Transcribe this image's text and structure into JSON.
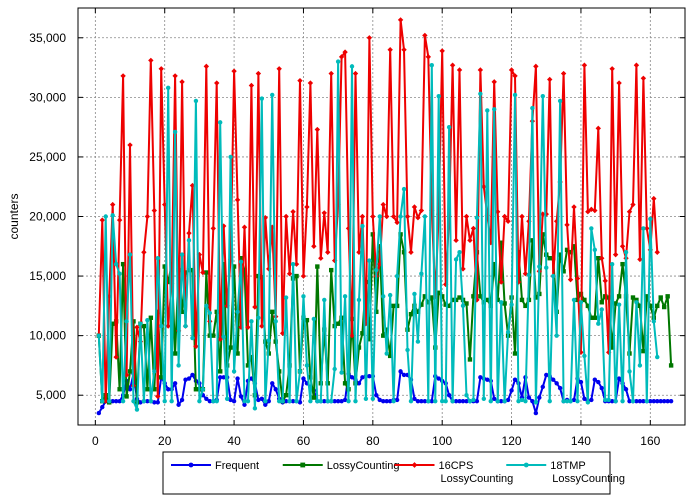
{
  "chart_data": {
    "type": "line",
    "title": "",
    "xlabel": "",
    "ylabel": "counters",
    "xlim": [
      -5,
      170
    ],
    "ylim": [
      2500,
      37500
    ],
    "xticks": [
      0,
      20,
      40,
      60,
      80,
      100,
      120,
      140,
      160
    ],
    "yticks": [
      5000,
      10000,
      15000,
      20000,
      25000,
      30000,
      35000
    ],
    "xtick_labels": [
      "0",
      "20",
      "40",
      "60",
      "80",
      "100",
      "120",
      "140",
      "160"
    ],
    "ytick_labels": [
      "5,000",
      "10,000",
      "15,000",
      "20,000",
      "25,000",
      "30,000",
      "35,000"
    ],
    "grid": true,
    "legend_position": "bottom",
    "series": [
      {
        "name": "Frequent",
        "color": "#0000ee",
        "marker": "circle",
        "x_start": 1,
        "values": [
          3500,
          4000,
          4500,
          4400,
          4500,
          4500,
          4500,
          5000,
          6200,
          5500,
          6800,
          4700,
          4400,
          4500,
          4500,
          4500,
          4400,
          4400,
          6500,
          6000,
          5500,
          5500,
          6000,
          4200,
          4600,
          6300,
          6400,
          6700,
          6200,
          6000,
          5000,
          4700,
          4500,
          4500,
          4600,
          6500,
          6500,
          6500,
          4600,
          4500,
          6400,
          4900,
          4200,
          6200,
          6400,
          6000,
          4600,
          4700,
          4200,
          4500,
          6000,
          5500,
          4700,
          4400,
          4500,
          4500,
          4500,
          4500,
          4400,
          6400,
          6000,
          5700,
          5400,
          4500,
          4500,
          4500,
          4500,
          4500,
          4500,
          4500,
          4500,
          4600,
          6800,
          6500,
          6300,
          6000,
          6500,
          6600,
          6600,
          6600,
          5000,
          4600,
          4500,
          4500,
          4500,
          4600,
          4600,
          7000,
          6700,
          6700,
          6300,
          4700,
          4500,
          4500,
          4500,
          4500,
          4500,
          6600,
          6400,
          6200,
          6000,
          5000,
          4500,
          4500,
          4500,
          4500,
          4500,
          4500,
          4500,
          4500,
          6500,
          6400,
          6300,
          6200,
          4700,
          4500,
          4500,
          4500,
          4600,
          5400,
          6300,
          6000,
          4800,
          6500,
          4800,
          4500,
          3500,
          4800,
          5700,
          6700,
          6600,
          6300,
          6000,
          5600,
          4500,
          4600,
          4500,
          4600,
          6400,
          6100,
          4700,
          4500,
          4600,
          6300,
          6100,
          5600,
          4500,
          4500,
          4500,
          4500,
          6400,
          6000,
          5500,
          4500,
          4500,
          4500,
          4500,
          4500,
          4500,
          4500,
          4500,
          4500,
          4500,
          4500,
          4500,
          4500
        ]
      },
      {
        "name": "LossyCounting",
        "color": "#007700",
        "marker": "square",
        "x_start": 1,
        "values": [
          10000,
          4500,
          5000,
          4400,
          11000,
          11200,
          5500,
          16000,
          4900,
          7000,
          11200,
          4400,
          11000,
          10800,
          5500,
          11500,
          5500,
          12000,
          6500,
          15800,
          14500,
          16000,
          8500,
          15500,
          12000,
          15300,
          15500,
          15500,
          5500,
          5500,
          5500,
          15300,
          10000,
          10000,
          12000,
          7000,
          16000,
          7500,
          9000,
          15800,
          8500,
          16500,
          15500,
          7500,
          8200,
          5000,
          15000,
          14900,
          9500,
          8500,
          12000,
          9500,
          7000,
          4500,
          5000,
          7500,
          14800,
          15000,
          7000,
          11500,
          11300,
          6500,
          4800,
          15800,
          6000,
          10500,
          6000,
          15500,
          10800,
          11000,
          11500,
          6000,
          5500,
          11400,
          6000,
          9000,
          10200,
          14500,
          9700,
          18500,
          12000,
          17500,
          10000,
          10500,
          8300,
          12500,
          12500,
          18500,
          17000,
          10500,
          11800,
          12500,
          12000,
          12600,
          13300,
          12800,
          13200,
          9000,
          13600,
          13300,
          12600,
          12500,
          13000,
          13000,
          13200,
          13000,
          12700,
          8000,
          13300,
          17000,
          13300,
          12800,
          13000,
          12500,
          16000,
          13000,
          17800,
          12700,
          10000,
          13200,
          8500,
          17000,
          13000,
          12500,
          13000,
          18000,
          13200,
          13500,
          18500,
          16800,
          16500,
          16500,
          12000,
          16800,
          15400,
          17200,
          17000,
          17500,
          13000,
          13500,
          13000,
          12500,
          11500,
          11500,
          16500,
          12800,
          13300,
          13200,
          9000,
          12700,
          13300,
          16000,
          13300,
          8500,
          13200,
          13000,
          12500,
          8700,
          13300,
          12500,
          11500,
          12500,
          13200,
          12400,
          13300,
          7500
        ]
      },
      {
        "name": "16CPS LossyCounting",
        "color": "#ee0000",
        "marker": "diamond",
        "x_start": 1,
        "values": [
          10000,
          19700,
          4500,
          13300,
          21000,
          8200,
          19700,
          31800,
          6700,
          26000,
          5800,
          10700,
          9500,
          17000,
          20000,
          33100,
          20500,
          4900,
          32400,
          21000,
          10800,
          14400,
          31800,
          10400,
          31300,
          10800,
          18600,
          22600,
          9100,
          16800,
          15300,
          32600,
          11200,
          19000,
          31200,
          9700,
          19200,
          12500,
          16400,
          32200,
          21400,
          10700,
          19100,
          10700,
          31000,
          12400,
          32000,
          10800,
          19900,
          15600,
          19100,
          11600,
          32400,
          10200,
          20000,
          15200,
          20400,
          16000,
          31400,
          15000,
          20800,
          31200,
          17500,
          27300,
          16500,
          20300,
          17000,
          32000,
          16300,
          21000,
          33400,
          33800,
          19000,
          10000,
          32000,
          17000,
          20000,
          11000,
          35000,
          20000,
          15000,
          16000,
          21000,
          20000,
          34000,
          20000,
          19500,
          36500,
          34000,
          20000,
          17000,
          20800,
          19900,
          20500,
          35200,
          33400,
          20500,
          13300,
          20200,
          33900,
          14300,
          20000,
          32700,
          18000,
          32300,
          15600,
          20000,
          18000,
          19000,
          13000,
          32300,
          22500,
          20100,
          17800,
          31300,
          20400,
          14500,
          20000,
          19600,
          32300,
          31800,
          14500,
          20000,
          15200,
          19600,
          28000,
          32600,
          15400,
          20200,
          20200,
          31500,
          15000,
          19600,
          22900,
          32000,
          19300,
          14700,
          20800,
          14800,
          8600,
          32700,
          20400,
          20600,
          20500,
          27400,
          16500,
          14600,
          8600,
          32400,
          16800,
          31200,
          17500,
          16500,
          20400,
          21000,
          32700,
          16400,
          31600,
          19000,
          17200,
          21500,
          17000
        ]
      },
      {
        "name": "18TMP LossyCounting",
        "color": "#00bbbb",
        "marker": "circle",
        "x_start": 1,
        "values": [
          10000,
          4500,
          20000,
          4500,
          20100,
          16000,
          15200,
          4500,
          11200,
          16800,
          4500,
          3800,
          11000,
          4500,
          11300,
          4500,
          7000,
          16500,
          10800,
          4500,
          30800,
          4500,
          27100,
          7500,
          16800,
          10800,
          18000,
          9800,
          29700,
          4500,
          5500,
          12500,
          11900,
          4500,
          4500,
          27900,
          9900,
          4700,
          25000,
          7000,
          12000,
          16200,
          4500,
          4500,
          11200,
          3900,
          11500,
          29900,
          4500,
          9600,
          30200,
          11200,
          4500,
          4500,
          13200,
          4500,
          16000,
          4500,
          7000,
          13300,
          7500,
          4500,
          11400,
          4500,
          4500,
          13000,
          4500,
          4500,
          7200,
          33000,
          6900,
          13300,
          4500,
          32600,
          4500,
          13000,
          19200,
          4700,
          16300,
          4700,
          15500,
          20000,
          13300,
          8500,
          13400,
          4500,
          15000,
          20000,
          22300,
          8800,
          4500,
          13500,
          9500,
          15200,
          20000,
          4500,
          32700,
          4500,
          30100,
          4500,
          4500,
          27500,
          4500,
          16400,
          17000,
          12500,
          5000,
          4500,
          4600,
          19900,
          30300,
          4700,
          28900,
          4500,
          29000,
          4500,
          12800,
          4500,
          10300,
          12600,
          30200,
          4500,
          4600,
          4500,
          15100,
          29100,
          4400,
          15800,
          30100,
          15700,
          4500,
          15000,
          10000,
          29700,
          4500,
          4500,
          4500,
          13000,
          4500,
          12800,
          8300,
          4400,
          19000,
          17200,
          11000,
          12200,
          4600,
          4600,
          16000,
          4500,
          12600,
          4500,
          17000,
          7000,
          4500,
          12800,
          7500,
          19000,
          4500,
          19800,
          11200,
          8200
        ]
      }
    ],
    "legend": [
      {
        "line1": "Frequent",
        "line2": ""
      },
      {
        "line1": "LossyCounting",
        "line2": ""
      },
      {
        "line1": "16CPS",
        "line2": "LossyCounting"
      },
      {
        "line1": "18TMP",
        "line2": "LossyCounting"
      }
    ]
  }
}
